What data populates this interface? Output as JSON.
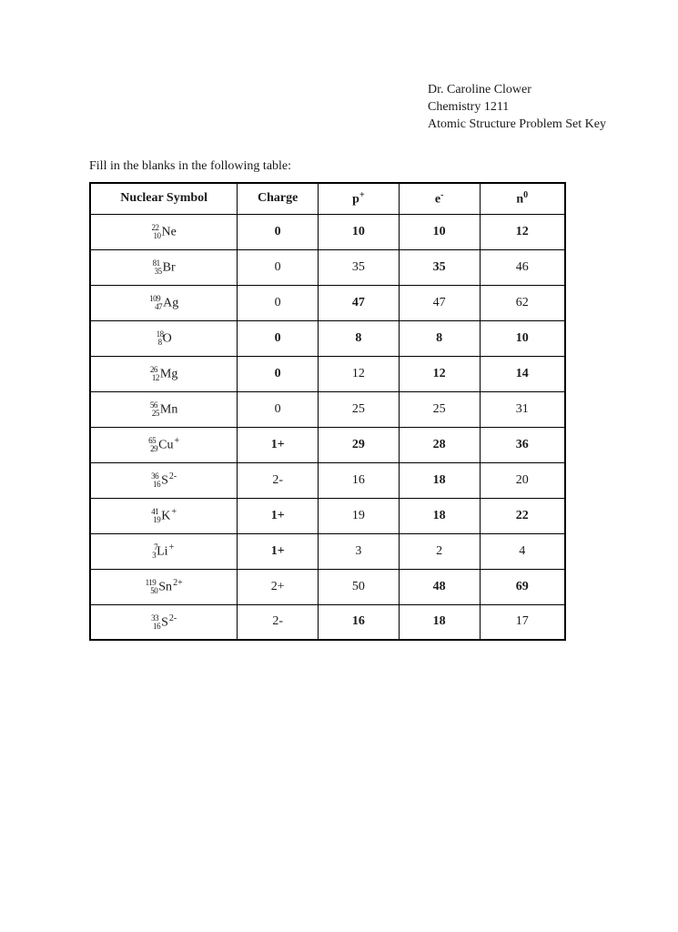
{
  "header": {
    "line1": "Dr. Caroline Clower",
    "line2": "Chemistry 1211",
    "line3": "Atomic Structure Problem Set Key"
  },
  "instruction": "Fill in the blanks in the following table:",
  "table": {
    "columns": {
      "symbol": "Nuclear Symbol",
      "charge": "Charge",
      "p_label": "p",
      "p_sup": "+",
      "e_label": "e",
      "e_sup": "-",
      "n_label": "n",
      "n_sup": "0"
    },
    "rows": [
      {
        "mass": "22",
        "z": "10",
        "elem": "Ne",
        "ion": "",
        "charge": "0",
        "p": "10",
        "e": "10",
        "n": "12",
        "bold": {
          "charge": true,
          "p": true,
          "e": true,
          "n": true
        }
      },
      {
        "mass": "81",
        "z": "35",
        "elem": "Br",
        "ion": "",
        "charge": "0",
        "p": "35",
        "e": "35",
        "n": "46",
        "bold": {
          "charge": false,
          "p": false,
          "e": true,
          "n": false
        }
      },
      {
        "mass": "109",
        "z": "47",
        "elem": "Ag",
        "ion": "",
        "charge": "0",
        "p": "47",
        "e": "47",
        "n": "62",
        "bold": {
          "charge": false,
          "p": true,
          "e": false,
          "n": false
        }
      },
      {
        "mass": "18",
        "z": "8",
        "elem": "O",
        "ion": "",
        "charge": "0",
        "p": "8",
        "e": "8",
        "n": "10",
        "bold": {
          "charge": true,
          "p": true,
          "e": true,
          "n": true
        }
      },
      {
        "mass": "26",
        "z": "12",
        "elem": "Mg",
        "ion": "",
        "charge": "0",
        "p": "12",
        "e": "12",
        "n": "14",
        "bold": {
          "charge": true,
          "p": false,
          "e": true,
          "n": true
        }
      },
      {
        "mass": "56",
        "z": "25",
        "elem": "Mn",
        "ion": "",
        "charge": "0",
        "p": "25",
        "e": "25",
        "n": "31",
        "bold": {
          "charge": false,
          "p": false,
          "e": false,
          "n": false
        }
      },
      {
        "mass": "65",
        "z": "29",
        "elem": "Cu",
        "ion": "+",
        "charge": "1+",
        "p": "29",
        "e": "28",
        "n": "36",
        "bold": {
          "charge": true,
          "p": true,
          "e": true,
          "n": true
        }
      },
      {
        "mass": "36",
        "z": "16",
        "elem": "S",
        "ion": "2-",
        "charge": "2-",
        "p": "16",
        "e": "18",
        "n": "20",
        "bold": {
          "charge": false,
          "p": false,
          "e": true,
          "n": false
        }
      },
      {
        "mass": "41",
        "z": "19",
        "elem": "K",
        "ion": "+",
        "charge": "1+",
        "p": "19",
        "e": "18",
        "n": "22",
        "bold": {
          "charge": true,
          "p": false,
          "e": true,
          "n": true
        }
      },
      {
        "mass": "7",
        "z": "3",
        "elem": "Li",
        "ion": "+",
        "charge": "1+",
        "p": "3",
        "e": "2",
        "n": "4",
        "bold": {
          "charge": true,
          "p": false,
          "e": false,
          "n": false
        }
      },
      {
        "mass": "119",
        "z": "50",
        "elem": "Sn",
        "ion": "2+",
        "charge": "2+",
        "p": "50",
        "e": "48",
        "n": "69",
        "bold": {
          "charge": false,
          "p": false,
          "e": true,
          "n": true
        }
      },
      {
        "mass": "33",
        "z": "16",
        "elem": "S",
        "ion": "2-",
        "charge": "2-",
        "p": "16",
        "e": "18",
        "n": "17",
        "bold": {
          "charge": false,
          "p": true,
          "e": true,
          "n": false
        }
      }
    ]
  }
}
